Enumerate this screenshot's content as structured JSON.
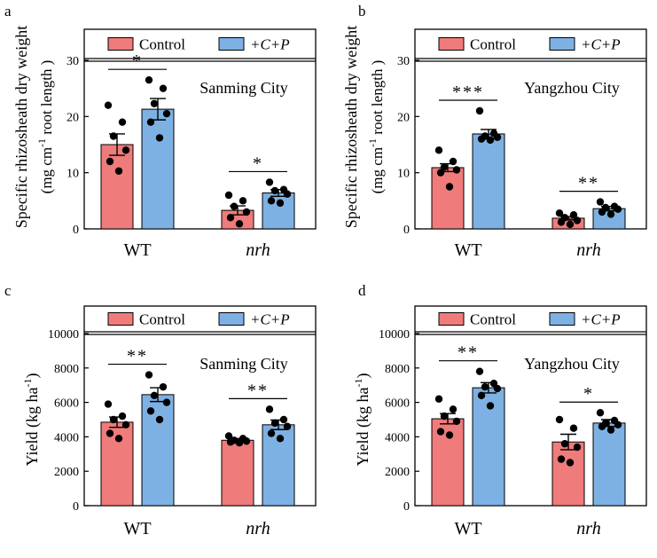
{
  "colors": {
    "control": "#f07b7b",
    "treatment": "#7eb1e3",
    "stroke": "#000000"
  },
  "legend": {
    "control": "Control",
    "treatment": "+C+P"
  },
  "chart_data": [
    {
      "panel": "a",
      "type": "bar",
      "title": "",
      "location": "Sanming City",
      "ylabel_line1": "Specific rhizosheath dry weight",
      "ylabel_line2": "(mg cm",
      "ylabel_sup": "-1",
      "ylabel_line2_end": " root length )",
      "yticks": [
        0,
        10,
        20,
        30
      ],
      "ylim": [
        0,
        30
      ],
      "categories": [
        "WT",
        "nrh"
      ],
      "series": [
        {
          "name": "Control",
          "values": [
            15.0,
            3.3
          ],
          "errors": [
            1.9,
            0.8
          ],
          "points": [
            [
              22.0,
              19.0,
              16.5,
              14.0,
              12.0,
              10.3
            ],
            [
              6.0,
              5.0,
              4.0,
              3.0,
              2.0,
              0.9
            ]
          ]
        },
        {
          "name": "+C+P",
          "values": [
            21.3,
            6.4
          ],
          "errors": [
            1.9,
            0.6
          ],
          "points": [
            [
              26.5,
              25.0,
              22.3,
              20.5,
              19.0,
              16.2
            ],
            [
              8.3,
              7.0,
              6.8,
              6.2,
              5.0,
              4.6
            ]
          ]
        }
      ],
      "significance": [
        "*",
        "*"
      ]
    },
    {
      "panel": "b",
      "type": "bar",
      "title": "",
      "location": "Yangzhou City",
      "ylabel_line1": "Specific rhizosheath dry weight",
      "ylabel_line2": "(mg cm",
      "ylabel_sup": "-1",
      "ylabel_line2_end": " root length )",
      "yticks": [
        0,
        10,
        20,
        30
      ],
      "ylim": [
        0,
        30
      ],
      "categories": [
        "WT",
        "nrh"
      ],
      "series": [
        {
          "name": "Control",
          "values": [
            10.9,
            1.9
          ],
          "errors": [
            0.7,
            0.3
          ],
          "points": [
            [
              14.0,
              12.0,
              11.0,
              10.5,
              10.0,
              7.5
            ],
            [
              2.8,
              2.5,
              2.0,
              1.5,
              1.2,
              0.8
            ]
          ]
        },
        {
          "name": "+C+P",
          "values": [
            16.9,
            3.6
          ],
          "errors": [
            0.8,
            0.4
          ],
          "points": [
            [
              21.0,
              17.0,
              16.5,
              16.3,
              16.0,
              15.8
            ],
            [
              4.8,
              4.0,
              3.8,
              3.5,
              3.0,
              2.6
            ]
          ]
        }
      ],
      "significance": [
        "***",
        "**"
      ]
    },
    {
      "panel": "c",
      "type": "bar",
      "title": "",
      "location": "Sanming City",
      "ylabel_line1": "Yield (kg ha",
      "ylabel_sup": "-1",
      "ylabel_end": ")",
      "yticks": [
        0,
        2000,
        4000,
        6000,
        8000,
        10000
      ],
      "ylim": [
        0,
        10000
      ],
      "categories": [
        "WT",
        "nrh"
      ],
      "series": [
        {
          "name": "Control",
          "values": [
            4850,
            3800
          ],
          "errors": [
            300,
            100
          ],
          "points": [
            [
              5900,
              5200,
              5000,
              4700,
              4200,
              3900
            ],
            [
              4050,
              3900,
              3800,
              3750,
              3700,
              3650
            ]
          ]
        },
        {
          "name": "+C+P",
          "values": [
            6450,
            4700
          ],
          "errors": [
            400,
            280
          ],
          "points": [
            [
              7600,
              6900,
              6400,
              6000,
              5500,
              5000
            ],
            [
              5600,
              5000,
              4800,
              4600,
              4200,
              3900
            ]
          ]
        }
      ],
      "significance": [
        "**",
        "**"
      ]
    },
    {
      "panel": "d",
      "type": "bar",
      "title": "",
      "location": "Yangzhou City",
      "ylabel_line1": "Yield (kg ha",
      "ylabel_sup": "-1",
      "ylabel_end": ")",
      "yticks": [
        0,
        2000,
        4000,
        6000,
        8000,
        10000
      ],
      "ylim": [
        0,
        10000
      ],
      "categories": [
        "WT",
        "nrh"
      ],
      "series": [
        {
          "name": "Control",
          "values": [
            5050,
            3700
          ],
          "errors": [
            300,
            450
          ],
          "points": [
            [
              6200,
              5600,
              5200,
              4900,
              4300,
              4100
            ],
            [
              5000,
              4500,
              3600,
              3400,
              2700,
              2500
            ]
          ]
        },
        {
          "name": "+C+P",
          "values": [
            6850,
            4800
          ],
          "errors": [
            300,
            200
          ],
          "points": [
            [
              7800,
              7100,
              6900,
              6800,
              6400,
              5800
            ],
            [
              5400,
              4950,
              4800,
              4700,
              4600,
              4400
            ]
          ]
        }
      ],
      "significance": [
        "**",
        "*"
      ]
    }
  ]
}
